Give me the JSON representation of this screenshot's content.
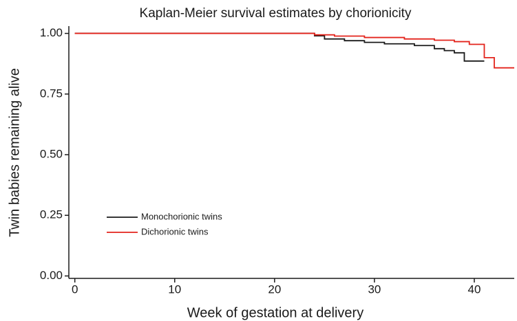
{
  "chart_data": {
    "type": "step",
    "title": "Kaplan-Meier survival estimates by chorionicity",
    "xlabel": "Week of gestation at delivery",
    "ylabel": "Twin babies remaining alive",
    "xlim": [
      -0.6,
      44
    ],
    "ylim": [
      -0.01,
      1.03
    ],
    "xticks": [
      0,
      10,
      20,
      30,
      40
    ],
    "yticks": [
      {
        "value": 0,
        "label": "0.00"
      },
      {
        "value": 0.25,
        "label": "0.25"
      },
      {
        "value": 0.5,
        "label": "0.50"
      },
      {
        "value": 0.75,
        "label": "0.75"
      },
      {
        "value": 1,
        "label": "1.00"
      }
    ],
    "series": [
      {
        "name": "Monochorionic twins",
        "color": "#1a1a1a",
        "x": [
          0,
          24,
          25,
          27,
          29,
          31,
          34,
          36,
          37,
          38,
          39,
          41
        ],
        "values": [
          1,
          0.99,
          0.977,
          0.97,
          0.963,
          0.957,
          0.95,
          0.937,
          0.929,
          0.92,
          0.886,
          0.886
        ]
      },
      {
        "name": "Dichorionic twins",
        "color": "#e3231b",
        "x": [
          0,
          24,
          26,
          29,
          33,
          36,
          38,
          39.5,
          41,
          42,
          44
        ],
        "values": [
          1,
          0.994,
          0.989,
          0.983,
          0.977,
          0.972,
          0.966,
          0.955,
          0.9,
          0.858,
          0.858
        ]
      }
    ],
    "legend": "lower-left"
  }
}
